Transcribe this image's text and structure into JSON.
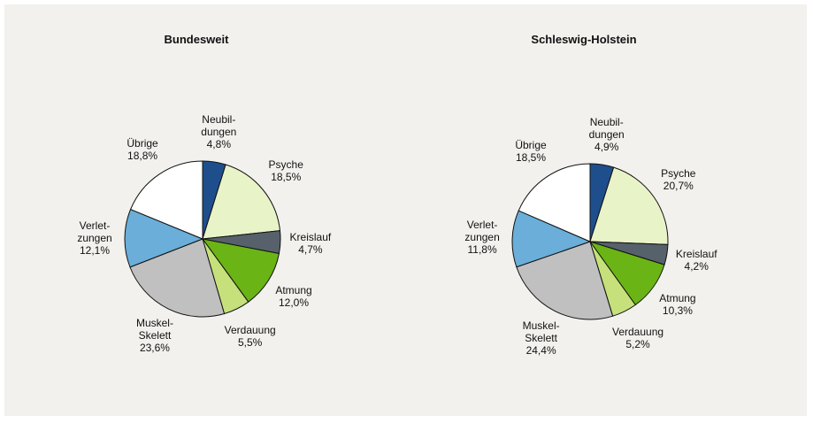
{
  "chart_data": [
    {
      "type": "pie",
      "title": "Bundesweit",
      "categories": [
        "Neubil-\ndungen",
        "Psyche",
        "Kreislauf",
        "Atmung",
        "Verdauung",
        "Muskel-\nSkelett",
        "Verlet-\nzungen",
        "Übrige"
      ],
      "values": [
        4.8,
        18.5,
        4.7,
        12.0,
        5.5,
        23.6,
        12.1,
        18.8
      ],
      "value_labels": [
        "4,8%",
        "18,5%",
        "4,7%",
        "12,0%",
        "5,5%",
        "23,6%",
        "12,1%",
        "18,8%"
      ],
      "colors": [
        "#1f4e8c",
        "#e9f3c8",
        "#56616b",
        "#6ab416",
        "#c6e07c",
        "#c0c0c0",
        "#6aaed9",
        "#ffffff"
      ]
    },
    {
      "type": "pie",
      "title": "Schleswig-Holstein",
      "categories": [
        "Neubil-\ndungen",
        "Psyche",
        "Kreislauf",
        "Atmung",
        "Verdauung",
        "Muskel-\nSkelett",
        "Verlet-\nzungen",
        "Übrige"
      ],
      "values": [
        4.9,
        20.7,
        4.2,
        10.3,
        5.2,
        24.4,
        11.8,
        18.5
      ],
      "value_labels": [
        "4,9%",
        "20,7%",
        "4,2%",
        "10,3%",
        "5,2%",
        "24,4%",
        "11,8%",
        "18,5%"
      ],
      "colors": [
        "#1f4e8c",
        "#e9f3c8",
        "#56616b",
        "#6ab416",
        "#c6e07c",
        "#c0c0c0",
        "#6aaed9",
        "#ffffff"
      ]
    }
  ]
}
